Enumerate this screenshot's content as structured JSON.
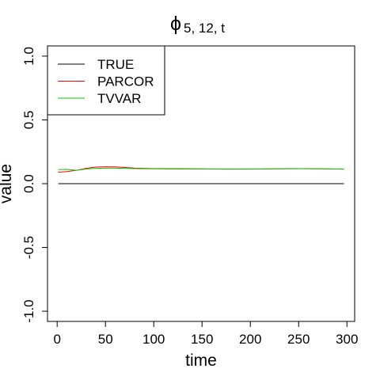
{
  "chart_data": {
    "type": "line",
    "title": "ϕ",
    "title_subscript": "5, 12, t",
    "x_label": "time",
    "y_label": "value",
    "x": [
      1,
      10,
      20,
      30,
      40,
      50,
      60,
      70,
      80,
      100,
      125,
      150,
      175,
      200,
      225,
      250,
      275,
      297
    ],
    "series": [
      {
        "name": "TRUE",
        "color": "#000000",
        "values": [
          0,
          0,
          0,
          0,
          0,
          0,
          0,
          0,
          0,
          0,
          0,
          0,
          0,
          0,
          0,
          0,
          0,
          0
        ]
      },
      {
        "name": "PARCOR",
        "color": "#ff0000",
        "values": [
          0.09,
          0.095,
          0.105,
          0.12,
          0.13,
          0.133,
          0.132,
          0.127,
          0.122,
          0.118,
          0.117,
          0.116,
          0.114,
          0.114,
          0.116,
          0.118,
          0.116,
          0.114
        ]
      },
      {
        "name": "TVVAR",
        "color": "#00cc00",
        "values": [
          0.11,
          0.112,
          0.105,
          0.115,
          0.12,
          0.122,
          0.122,
          0.12,
          0.118,
          0.116,
          0.115,
          0.115,
          0.114,
          0.115,
          0.116,
          0.117,
          0.116,
          0.114
        ]
      }
    ],
    "xlim": [
      -10,
      308
    ],
    "ylim": [
      -1.08,
      1.08
    ],
    "xticks": [
      0,
      50,
      100,
      150,
      200,
      250,
      300
    ],
    "yticks": [
      {
        "value": -1,
        "label": "-1.0"
      },
      -0.5,
      {
        "value": 0,
        "label": "0.0"
      },
      0.5,
      {
        "value": 1,
        "label": "1.0"
      }
    ],
    "legend": "top-left"
  }
}
